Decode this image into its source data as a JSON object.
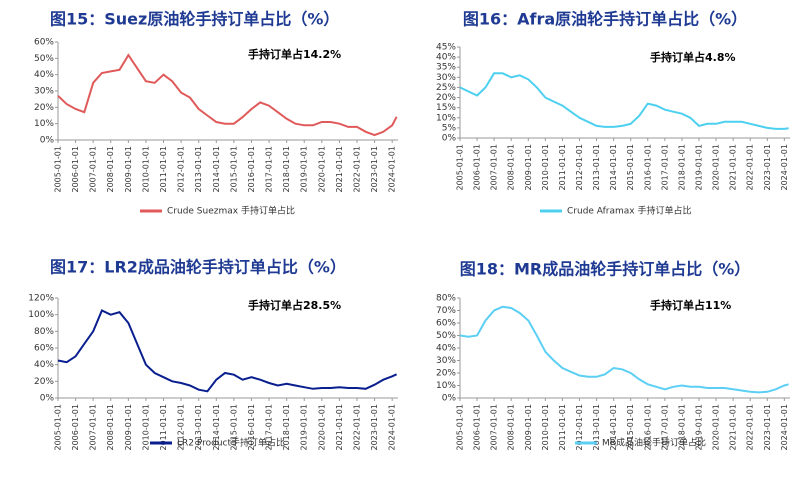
{
  "chart_data": [
    {
      "type": "line",
      "title": "图15：Suez原油轮手持订单占比（%）",
      "annotation": "手持订单占14.2%",
      "x": [
        "2005-01-01",
        "2005-07-01",
        "2006-01-01",
        "2006-07-01",
        "2007-01-01",
        "2007-07-01",
        "2008-01-01",
        "2008-07-01",
        "2009-01-01",
        "2009-07-01",
        "2010-01-01",
        "2010-07-01",
        "2011-01-01",
        "2011-07-01",
        "2012-01-01",
        "2012-07-01",
        "2013-01-01",
        "2013-07-01",
        "2014-01-01",
        "2014-07-01",
        "2015-01-01",
        "2015-07-01",
        "2016-01-01",
        "2016-07-01",
        "2017-01-01",
        "2017-07-01",
        "2018-01-01",
        "2018-07-01",
        "2019-01-01",
        "2019-07-01",
        "2020-01-01",
        "2020-07-01",
        "2021-01-01",
        "2021-07-01",
        "2022-01-01",
        "2022-07-01",
        "2023-01-01",
        "2023-07-01",
        "2024-01-01",
        "2024-04-01"
      ],
      "series": [
        {
          "name": "Crude Suezmax 手持订单占比",
          "color": "#e05a5a",
          "values": [
            27,
            22,
            19,
            17,
            35,
            41,
            42,
            43,
            52,
            44,
            36,
            35,
            40,
            36,
            29,
            26,
            19,
            15,
            11,
            10,
            10,
            14,
            19,
            23,
            21,
            17,
            13,
            10,
            9,
            9,
            11,
            11,
            10,
            8,
            8,
            5,
            3,
            5,
            9,
            14.2
          ]
        }
      ],
      "xlim": [
        "2005-01-01",
        "2024-05-01"
      ],
      "xticks": [
        "2005-01-01",
        "2006-01-01",
        "2007-01-01",
        "2008-01-01",
        "2009-01-01",
        "2010-01-01",
        "2011-01-01",
        "2012-01-01",
        "2013-01-01",
        "2014-01-01",
        "2015-01-01",
        "2016-01-01",
        "2017-01-01",
        "2018-01-01",
        "2019-01-01",
        "2020-01-01",
        "2021-01-01",
        "2022-01-01",
        "2023-01-01",
        "2024-01-01"
      ],
      "ylim": [
        0,
        60
      ],
      "yticks": [
        {
          "value": 0,
          "label": "0%"
        },
        {
          "value": 10,
          "label": "10%"
        },
        {
          "value": 20,
          "label": "20%"
        },
        {
          "value": 30,
          "label": "30%"
        },
        {
          "value": 40,
          "label": "40%"
        },
        {
          "value": 50,
          "label": "50%"
        },
        {
          "value": 60,
          "label": "60%"
        }
      ]
    },
    {
      "type": "line",
      "title": "图16：Afra原油轮手持订单占比（%）",
      "annotation": "手持订单占4.8%",
      "x": [
        "2005-01-01",
        "2005-07-01",
        "2006-01-01",
        "2006-07-01",
        "2007-01-01",
        "2007-07-01",
        "2008-01-01",
        "2008-07-01",
        "2009-01-01",
        "2009-07-01",
        "2010-01-01",
        "2010-07-01",
        "2011-01-01",
        "2011-07-01",
        "2012-01-01",
        "2012-07-01",
        "2013-01-01",
        "2013-07-01",
        "2014-01-01",
        "2014-07-01",
        "2015-01-01",
        "2015-07-01",
        "2016-01-01",
        "2016-07-01",
        "2017-01-01",
        "2017-07-01",
        "2018-01-01",
        "2018-07-01",
        "2019-01-01",
        "2019-07-01",
        "2020-01-01",
        "2020-07-01",
        "2021-01-01",
        "2021-07-01",
        "2022-01-01",
        "2022-07-01",
        "2023-01-01",
        "2023-07-01",
        "2024-01-01",
        "2024-04-01"
      ],
      "series": [
        {
          "name": "Crude Aframax 手持订单占比",
          "color": "#4dd0f0",
          "values": [
            25,
            23,
            21,
            25,
            32,
            32,
            30,
            31,
            29,
            25,
            20,
            18,
            16,
            13,
            10,
            8,
            6,
            5.5,
            5.5,
            6,
            7,
            11,
            17,
            16,
            14,
            13,
            12,
            10,
            6,
            7,
            7,
            8,
            8,
            8,
            7,
            6,
            5,
            4.5,
            4.5,
            4.8
          ]
        }
      ],
      "xlim": [
        "2005-01-01",
        "2024-05-01"
      ],
      "xticks": [
        "2005-01-01",
        "2006-01-01",
        "2007-01-01",
        "2008-01-01",
        "2009-01-01",
        "2010-01-01",
        "2011-01-01",
        "2012-01-01",
        "2013-01-01",
        "2014-01-01",
        "2015-01-01",
        "2016-01-01",
        "2017-01-01",
        "2018-01-01",
        "2019-01-01",
        "2020-01-01",
        "2021-01-01",
        "2022-01-01",
        "2023-01-01",
        "2024-01-01"
      ],
      "ylim": [
        0,
        45
      ],
      "yticks": [
        {
          "value": 0,
          "label": "0%"
        },
        {
          "value": 5,
          "label": "5%"
        },
        {
          "value": 10,
          "label": "10%"
        },
        {
          "value": 15,
          "label": "15%"
        },
        {
          "value": 20,
          "label": "20%"
        },
        {
          "value": 25,
          "label": "25%"
        },
        {
          "value": 30,
          "label": "30%"
        },
        {
          "value": 35,
          "label": "35%"
        },
        {
          "value": 40,
          "label": "40%"
        },
        {
          "value": 45,
          "label": "45%"
        }
      ]
    },
    {
      "type": "line",
      "title": "图17：LR2成品油轮手持订单占比（%）",
      "annotation": "手持订单占28.5%",
      "x": [
        "2005-01-01",
        "2005-07-01",
        "2006-01-01",
        "2006-07-01",
        "2007-01-01",
        "2007-07-01",
        "2008-01-01",
        "2008-07-01",
        "2009-01-01",
        "2009-07-01",
        "2010-01-01",
        "2010-07-01",
        "2011-01-01",
        "2011-07-01",
        "2012-01-01",
        "2012-07-01",
        "2013-01-01",
        "2013-07-01",
        "2014-01-01",
        "2014-07-01",
        "2015-01-01",
        "2015-07-01",
        "2016-01-01",
        "2016-07-01",
        "2017-01-01",
        "2017-07-01",
        "2018-01-01",
        "2018-07-01",
        "2019-01-01",
        "2019-07-01",
        "2020-01-01",
        "2020-07-01",
        "2021-01-01",
        "2021-07-01",
        "2022-01-01",
        "2022-07-01",
        "2023-01-01",
        "2023-07-01",
        "2024-01-01",
        "2024-04-01"
      ],
      "series": [
        {
          "name": "LR2 Product手持订单占比",
          "color": "#0a1f8f",
          "values": [
            45,
            43,
            50,
            65,
            80,
            105,
            100,
            103,
            90,
            65,
            40,
            30,
            25,
            20,
            18,
            15,
            10,
            8,
            22,
            30,
            28,
            22,
            25,
            22,
            18,
            15,
            17,
            15,
            13,
            11,
            12,
            12,
            13,
            12,
            12,
            11,
            16,
            22,
            26,
            28.5
          ]
        }
      ],
      "xlim": [
        "2005-01-01",
        "2024-05-01"
      ],
      "xticks": [
        "2005-01-01",
        "2006-01-01",
        "2007-01-01",
        "2008-01-01",
        "2009-01-01",
        "2010-01-01",
        "2011-01-01",
        "2012-01-01",
        "2013-01-01",
        "2014-01-01",
        "2015-01-01",
        "2016-01-01",
        "2017-01-01",
        "2018-01-01",
        "2019-01-01",
        "2020-01-01",
        "2021-01-01",
        "2022-01-01",
        "2023-01-01",
        "2024-01-01"
      ],
      "ylim": [
        0,
        120
      ],
      "yticks": [
        {
          "value": 0,
          "label": "0%"
        },
        {
          "value": 20,
          "label": "20%"
        },
        {
          "value": 40,
          "label": "40%"
        },
        {
          "value": 60,
          "label": "60%"
        },
        {
          "value": 80,
          "label": "80%"
        },
        {
          "value": 100,
          "label": "100%"
        },
        {
          "value": 120,
          "label": "120%"
        }
      ]
    },
    {
      "type": "line",
      "title": "图18：MR成品油轮手持订单占比（%）",
      "annotation": "手持订单占11%",
      "x": [
        "2005-01-01",
        "2005-07-01",
        "2006-01-01",
        "2006-07-01",
        "2007-01-01",
        "2007-07-01",
        "2008-01-01",
        "2008-07-01",
        "2009-01-01",
        "2009-07-01",
        "2010-01-01",
        "2010-07-01",
        "2011-01-01",
        "2011-07-01",
        "2012-01-01",
        "2012-07-01",
        "2013-01-01",
        "2013-07-01",
        "2014-01-01",
        "2014-07-01",
        "2015-01-01",
        "2015-07-01",
        "2016-01-01",
        "2016-07-01",
        "2017-01-01",
        "2017-07-01",
        "2018-01-01",
        "2018-07-01",
        "2019-01-01",
        "2019-07-01",
        "2020-01-01",
        "2020-07-01",
        "2021-01-01",
        "2021-07-01",
        "2022-01-01",
        "2022-07-01",
        "2023-01-01",
        "2023-07-01",
        "2024-01-01",
        "2024-04-01"
      ],
      "series": [
        {
          "name": "MR成品油轮手持订单占比",
          "color": "#5ccff5",
          "values": [
            50,
            49,
            50,
            62,
            70,
            73,
            72,
            68,
            62,
            50,
            37,
            30,
            24,
            21,
            18,
            17,
            17,
            19,
            24,
            23,
            20,
            15,
            11,
            9,
            7,
            9,
            10,
            9,
            9,
            8,
            8,
            8,
            7,
            6,
            5,
            4.5,
            5,
            7,
            10,
            11
          ]
        }
      ],
      "xlim": [
        "2005-01-01",
        "2024-05-01"
      ],
      "xticks": [
        "2005-01-01",
        "2006-01-01",
        "2007-01-01",
        "2008-01-01",
        "2009-01-01",
        "2010-01-01",
        "2011-01-01",
        "2012-01-01",
        "2013-01-01",
        "2014-01-01",
        "2015-01-01",
        "2016-01-01",
        "2017-01-01",
        "2018-01-01",
        "2019-01-01",
        "2020-01-01",
        "2021-01-01",
        "2022-01-01",
        "2023-01-01",
        "2024-01-01"
      ],
      "ylim": [
        0,
        80
      ],
      "yticks": [
        {
          "value": 0,
          "label": "0%"
        },
        {
          "value": 10,
          "label": "10%"
        },
        {
          "value": 20,
          "label": "20%"
        },
        {
          "value": 30,
          "label": "30%"
        },
        {
          "value": 40,
          "label": "40%"
        },
        {
          "value": 50,
          "label": "50%"
        },
        {
          "value": 60,
          "label": "60%"
        },
        {
          "value": 70,
          "label": "70%"
        },
        {
          "value": 80,
          "label": "80%"
        }
      ]
    }
  ]
}
